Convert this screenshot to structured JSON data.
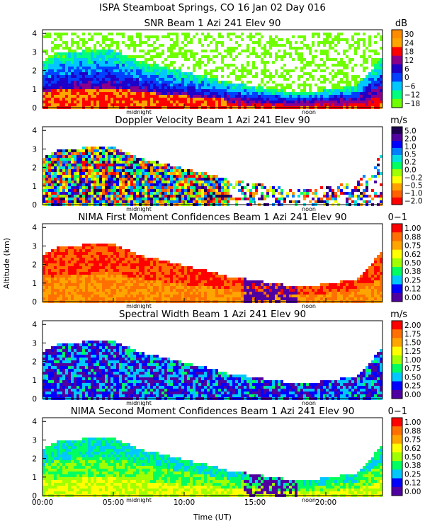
{
  "chart_data": {
    "type": "heatmap",
    "title": "ISPA Steamboat Springs, CO   16 Jan 02 Day 016",
    "xlabel": "Time (UT)",
    "ylabel": "Altitude (km)",
    "x_ticks": [
      "00:00",
      "05:00",
      "10:00",
      "15:00",
      "20:00"
    ],
    "x_tick_values_hours": [
      0,
      5,
      10,
      15,
      20
    ],
    "xlim_hours": [
      0,
      24
    ],
    "x_markers": [
      {
        "label": "midnight",
        "hour": 6.8
      },
      {
        "label": "noon",
        "hour": 18.8
      }
    ],
    "y_ticks": [
      "0",
      "1",
      "2",
      "3",
      "4"
    ],
    "ylim_km": [
      0,
      4.2
    ],
    "panels": [
      {
        "title": "SNR Beam 1 Azi 241 Elev 90",
        "units": "dB",
        "scale": [
          "30",
          "24",
          "18",
          "12",
          "6",
          "0",
          "−6",
          "−12",
          "−18"
        ],
        "colors": [
          "#ff8c00",
          "#ffa500",
          "#ff0000",
          "#8b008b",
          "#1e00c8",
          "#0040ff",
          "#00c8ff",
          "#00ff80",
          "#70ff00"
        ]
      },
      {
        "title": "Doppler Velocity Beam 1 Azi 241 Elev 90",
        "units": "m/s",
        "scale": [
          "5.0",
          "2.0",
          "1.0",
          "0.5",
          "0.2",
          "0.0",
          "−0.2",
          "−0.5",
          "−1.0",
          "−2.0"
        ],
        "colors": [
          "#1e0050",
          "#5000a0",
          "#0000ff",
          "#0080ff",
          "#00e0e0",
          "#00ff60",
          "#a0ff00",
          "#ffff00",
          "#ffa000",
          "#ff6000",
          "#ff0000"
        ]
      },
      {
        "title": "NIMA First Moment Confidences Beam 1 Azi 241 Elev 90",
        "units": "0−1",
        "scale": [
          "1.00",
          "0.88",
          "0.75",
          "0.62",
          "0.50",
          "0.38",
          "0.25",
          "0.12",
          "0.00"
        ],
        "colors": [
          "#ff0000",
          "#ff7000",
          "#ffa500",
          "#ffff00",
          "#a0ff00",
          "#00ff60",
          "#00c8ff",
          "#0000ff",
          "#5000a0"
        ]
      },
      {
        "title": "Spectral Width Beam 1 Azi 241 Elev 90",
        "units": "m/s",
        "scale": [
          "2.00",
          "1.75",
          "1.50",
          "1.25",
          "1.00",
          "0.75",
          "0.50",
          "0.25",
          "0.00"
        ],
        "colors": [
          "#ff0000",
          "#ff7000",
          "#ffa500",
          "#ffff00",
          "#a0ff00",
          "#00ff60",
          "#00c8ff",
          "#0000ff",
          "#5000a0"
        ]
      },
      {
        "title": "NIMA Second Moment Confidences Beam 1 Azi 241 Elev 90",
        "units": "0−1",
        "scale": [
          "1.00",
          "0.88",
          "0.75",
          "0.62",
          "0.50",
          "0.38",
          "0.25",
          "0.12",
          "0.00"
        ],
        "colors": [
          "#ff0000",
          "#ff7000",
          "#ffa500",
          "#ffff00",
          "#a0ff00",
          "#00ff60",
          "#00c8ff",
          "#0000ff",
          "#5000a0"
        ]
      }
    ]
  }
}
